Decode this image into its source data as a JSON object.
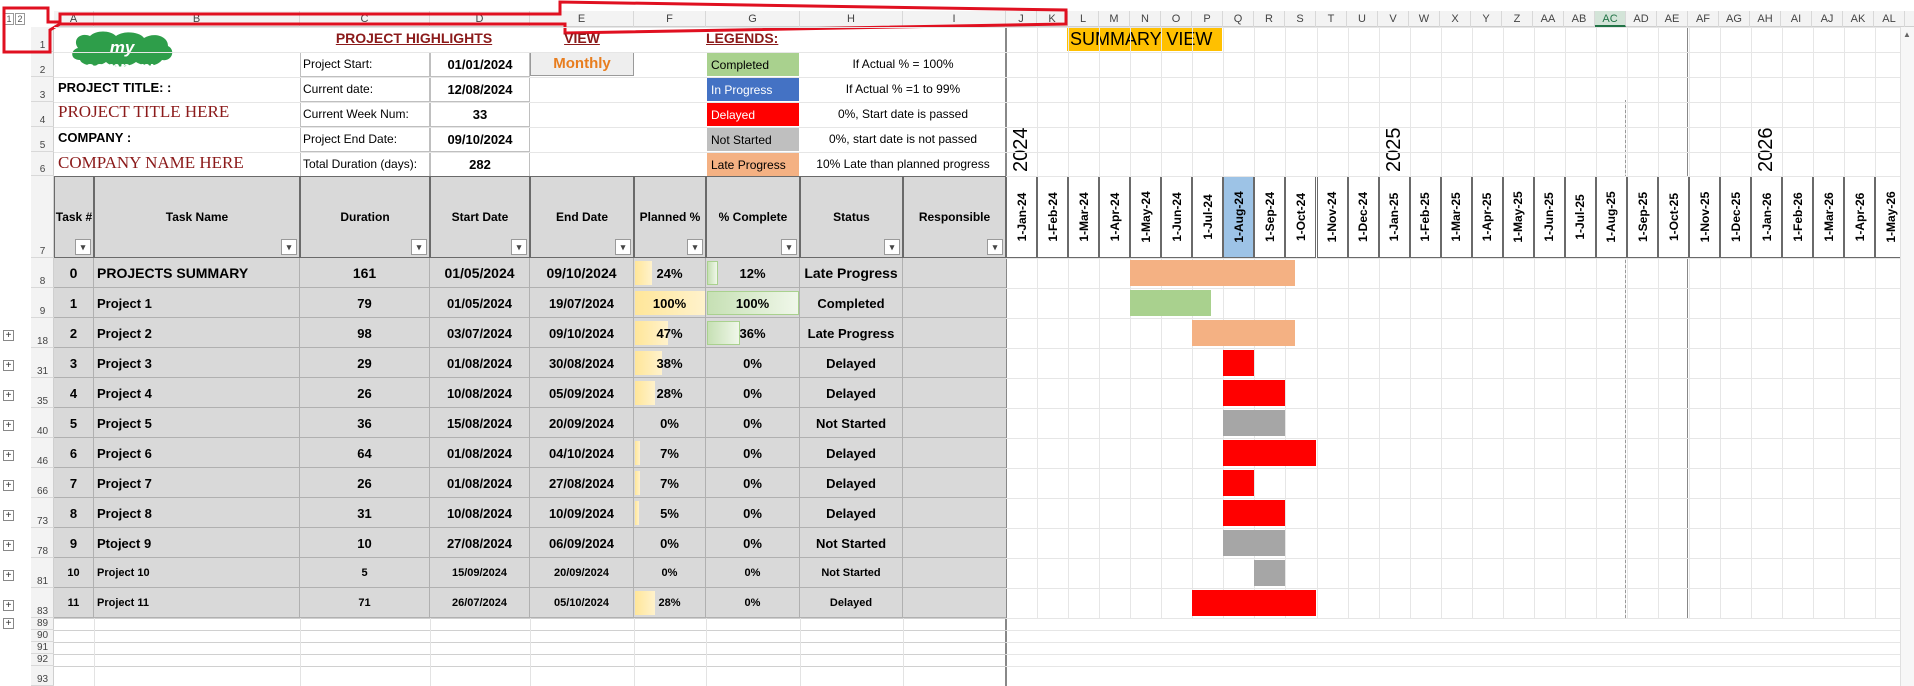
{
  "outline_levels": [
    "1",
    "2"
  ],
  "columns": [
    "A",
    "B",
    "C",
    "D",
    "E",
    "F",
    "G",
    "H",
    "I",
    "J",
    "K",
    "L",
    "M",
    "N",
    "O",
    "P",
    "Q",
    "R",
    "S",
    "T",
    "U",
    "V",
    "W",
    "X",
    "Y",
    "Z",
    "AA",
    "AB",
    "AC",
    "AD",
    "AE",
    "AF",
    "AG",
    "AH",
    "AI",
    "AJ",
    "AK",
    "AL"
  ],
  "selected_column": "AC",
  "rows": [
    "1",
    "2",
    "3",
    "4",
    "5",
    "6",
    "7",
    "8",
    "9",
    "18",
    "31",
    "35",
    "40",
    "46",
    "66",
    "73",
    "78",
    "81",
    "83",
    "89",
    "90",
    "91",
    "92",
    "93"
  ],
  "logo_text": "my company",
  "project_title_label": "PROJECT TITLE: :",
  "project_title_value": "PROJECT TITLE HERE",
  "company_label": "COMPANY :",
  "company_value": "COMPANY NAME HERE",
  "highlights": {
    "title": "PROJECT HIGHLIGHTS",
    "items": [
      {
        "label": "Project Start:",
        "value": "01/01/2024"
      },
      {
        "label": "Current date:",
        "value": "12/08/2024"
      },
      {
        "label": "Current Week Num:",
        "value": "33"
      },
      {
        "label": "Project End Date:",
        "value": "09/10/2024"
      },
      {
        "label": "Total Duration (days):",
        "value": "282"
      }
    ]
  },
  "view": {
    "title": "VIEW",
    "value": "Monthly"
  },
  "legends": {
    "title": "LEGENDS:",
    "items": [
      {
        "name": "Completed",
        "desc": "If Actual % = 100%",
        "color": "#a9d18e"
      },
      {
        "name": "In Progress",
        "desc": "If Actual % =1 to 99%",
        "color": "#4472c4"
      },
      {
        "name": "Delayed",
        "desc": "0%, Start date is passed",
        "color": "#ff0000"
      },
      {
        "name": "Not Started",
        "desc": "0%, start date is not passed",
        "color": "#bfbfbf"
      },
      {
        "name": "Late Progress",
        "desc": "10% Late than planned progress",
        "color": "#f4b183"
      }
    ]
  },
  "summary_view_title": "SUMMARY VIEW",
  "years": [
    "2024",
    "2025",
    "2026"
  ],
  "months": [
    "1-Jan-24",
    "1-Feb-24",
    "1-Mar-24",
    "1-Apr-24",
    "1-May-24",
    "1-Jun-24",
    "1-Jul-24",
    "1-Aug-24",
    "1-Sep-24",
    "1-Oct-24",
    "1-Nov-24",
    "1-Dec-24",
    "1-Jan-25",
    "1-Feb-25",
    "1-Mar-25",
    "1-Apr-25",
    "1-May-25",
    "1-Jun-25",
    "1-Jul-25",
    "1-Aug-25",
    "1-Sep-25",
    "1-Oct-25",
    "1-Nov-25",
    "1-Dec-25",
    "1-Jan-26",
    "1-Feb-26",
    "1-Mar-26",
    "1-Apr-26",
    "1-May-26"
  ],
  "current_month": "1-Aug-24",
  "table_headers": {
    "task_num": "Task #",
    "task_name": "Task Name",
    "duration": "Duration",
    "start": "Start Date",
    "end": "End Date",
    "planned": "Planned %",
    "complete": "% Complete",
    "status": "Status",
    "responsible": "Responsible"
  },
  "tasks": [
    {
      "row": "8",
      "num": "0",
      "name": "PROJECTS SUMMARY",
      "duration": "161",
      "start": "01/05/2024",
      "end": "09/10/2024",
      "planned": "24%",
      "planned_frac": 0.24,
      "complete": "12%",
      "complete_frac": 0.12,
      "status": "Late Progress",
      "bar_start": 4,
      "bar_end": 9.3,
      "bar_color": "#f4b183",
      "bold": true
    },
    {
      "row": "9",
      "num": "1",
      "name": "Project 1",
      "duration": "79",
      "start": "01/05/2024",
      "end": "19/07/2024",
      "planned": "100%",
      "planned_frac": 1.0,
      "complete": "100%",
      "complete_frac": 1.0,
      "status": "Completed",
      "bar_start": 4,
      "bar_end": 6.6,
      "bar_color": "#a9d18e"
    },
    {
      "row": "18",
      "num": "2",
      "name": "Project 2",
      "duration": "98",
      "start": "03/07/2024",
      "end": "09/10/2024",
      "planned": "47%",
      "planned_frac": 0.47,
      "complete": "36%",
      "complete_frac": 0.36,
      "status": "Late Progress",
      "bar_start": 6,
      "bar_end": 9.3,
      "bar_color": "#f4b183"
    },
    {
      "row": "31",
      "num": "3",
      "name": "Project 3",
      "duration": "29",
      "start": "01/08/2024",
      "end": "30/08/2024",
      "planned": "38%",
      "planned_frac": 0.38,
      "complete": "0%",
      "complete_frac": 0,
      "status": "Delayed",
      "bar_start": 7,
      "bar_end": 8,
      "bar_color": "#ff0000"
    },
    {
      "row": "35",
      "num": "4",
      "name": "Project 4",
      "duration": "26",
      "start": "10/08/2024",
      "end": "05/09/2024",
      "planned": "28%",
      "planned_frac": 0.28,
      "complete": "0%",
      "complete_frac": 0,
      "status": "Delayed",
      "bar_start": 7,
      "bar_end": 9,
      "bar_color": "#ff0000"
    },
    {
      "row": "40",
      "num": "5",
      "name": "Project 5",
      "duration": "36",
      "start": "15/08/2024",
      "end": "20/09/2024",
      "planned": "0%",
      "planned_frac": 0,
      "complete": "0%",
      "complete_frac": 0,
      "status": "Not Started",
      "bar_start": 7,
      "bar_end": 9,
      "bar_color": "#a6a6a6"
    },
    {
      "row": "46",
      "num": "6",
      "name": "Project 6",
      "duration": "64",
      "start": "01/08/2024",
      "end": "04/10/2024",
      "planned": "7%",
      "planned_frac": 0.07,
      "complete": "0%",
      "complete_frac": 0,
      "status": "Delayed",
      "bar_start": 7,
      "bar_end": 10,
      "bar_color": "#ff0000"
    },
    {
      "row": "66",
      "num": "7",
      "name": "Project 7",
      "duration": "26",
      "start": "01/08/2024",
      "end": "27/08/2024",
      "planned": "7%",
      "planned_frac": 0.07,
      "complete": "0%",
      "complete_frac": 0,
      "status": "Delayed",
      "bar_start": 7,
      "bar_end": 8,
      "bar_color": "#ff0000"
    },
    {
      "row": "73",
      "num": "8",
      "name": "Project 8",
      "duration": "31",
      "start": "10/08/2024",
      "end": "10/09/2024",
      "planned": "5%",
      "planned_frac": 0.05,
      "complete": "0%",
      "complete_frac": 0,
      "status": "Delayed",
      "bar_start": 7,
      "bar_end": 9,
      "bar_color": "#ff0000"
    },
    {
      "row": "78",
      "num": "9",
      "name": "Ptoject 9",
      "duration": "10",
      "start": "27/08/2024",
      "end": "06/09/2024",
      "planned": "0%",
      "planned_frac": 0,
      "complete": "0%",
      "complete_frac": 0,
      "status": "Not Started",
      "bar_start": 7,
      "bar_end": 9,
      "bar_color": "#a6a6a6"
    },
    {
      "row": "81",
      "num": "10",
      "name": "Project 10",
      "duration": "5",
      "start": "15/09/2024",
      "end": "20/09/2024",
      "planned": "0%",
      "planned_frac": 0,
      "complete": "0%",
      "complete_frac": 0,
      "status": "Not Started",
      "bar_start": 8,
      "bar_end": 9,
      "bar_color": "#a6a6a6",
      "small": true
    },
    {
      "row": "83",
      "num": "11",
      "name": "Project 11",
      "duration": "71",
      "start": "26/07/2024",
      "end": "05/10/2024",
      "planned": "28%",
      "planned_frac": 0.28,
      "complete": "0%",
      "complete_frac": 0,
      "status": "Delayed",
      "bar_start": 6,
      "bar_end": 10,
      "bar_color": "#ff0000",
      "small": true
    }
  ]
}
